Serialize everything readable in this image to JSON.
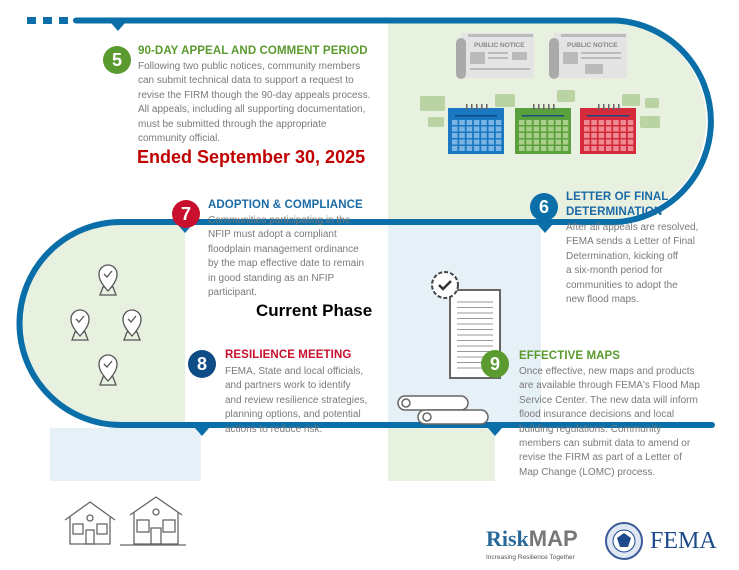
{
  "colors": {
    "path": "#0a6fa8",
    "green": "#5a9a2e",
    "red": "#c8102e",
    "blue": "#1a6aa6",
    "navy": "#0e4c85",
    "note_red": "#c00000",
    "green_bg": "#e8f0e0",
    "blue_bg": "#e6f0f7"
  },
  "steps": {
    "s5": {
      "number": "5",
      "title": "90-DAY APPEAL AND COMMENT PERIOD",
      "lines": [
        "Following two public notices, community members",
        "can submit technical data to support a request to",
        "revise the FIRM though the 90-day appeals process.",
        "All appeals, including all supporting documentation,",
        "must be submitted through the appropriate",
        "community official."
      ],
      "note": "Ended September 30, 2025"
    },
    "s6": {
      "number": "6",
      "title_lines": [
        "LETTER OF FINAL",
        "DETERMINATION"
      ],
      "lines": [
        "After all appeals are resolved,",
        "FEMA sends a Letter of Final",
        "Determination, kicking off",
        "a six-month period for",
        "communities to adopt the",
        "new flood maps."
      ]
    },
    "s7": {
      "number": "7",
      "title": "ADOPTION & COMPLIANCE",
      "lines": [
        "Communities participating in the",
        "NFIP must adopt a compliant",
        "floodplain management ordinance",
        "by the map effective date to remain",
        "in good standing as an NFIP",
        "participant."
      ],
      "note": "Current Phase"
    },
    "s8": {
      "number": "8",
      "title": "RESILIENCE MEETING",
      "lines": [
        "FEMA, State and local officials,",
        "and partners work  to identify",
        "and review resilience strategies,",
        "planning options, and potential",
        "actions to reduce risk."
      ]
    },
    "s9": {
      "number": "9",
      "title": "EFFECTIVE MAPS",
      "lines": [
        "Once effective, new maps and products",
        "are available through FEMA's Flood Map",
        "Service Center. The new data will inform",
        "flood insurance decisions and local",
        "building regulations. Community",
        "members can submit data to amend or",
        "revise the FIRM as part of a Letter of",
        "Map Change (LOMC) process."
      ]
    }
  },
  "illustrations": {
    "newspaper_label": "PUBLIC NOTICE"
  },
  "logos": {
    "riskmap_a": "Risk",
    "riskmap_b": "MAP",
    "riskmap_tagline": "Increasing Resilience Together",
    "fema": "FEMA"
  }
}
